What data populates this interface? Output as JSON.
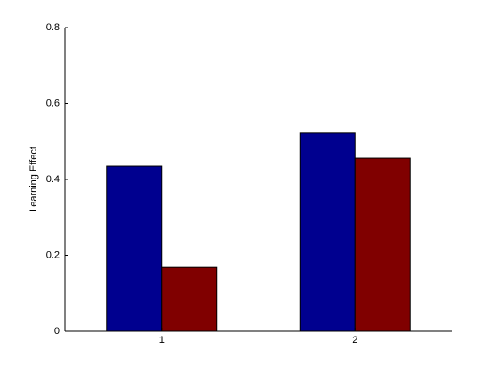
{
  "chart_data": {
    "type": "bar",
    "y_label": "Learning Effect",
    "categories": [
      "1",
      "2"
    ],
    "series": [
      {
        "color": "#00008f",
        "values": [
          0.435,
          0.522
        ]
      },
      {
        "color": "#800000",
        "values": [
          0.168,
          0.456
        ]
      }
    ],
    "ylim": [
      0,
      0.8
    ],
    "yticks": [
      0,
      0.2,
      0.4,
      0.6,
      0.8
    ],
    "grid": false
  }
}
